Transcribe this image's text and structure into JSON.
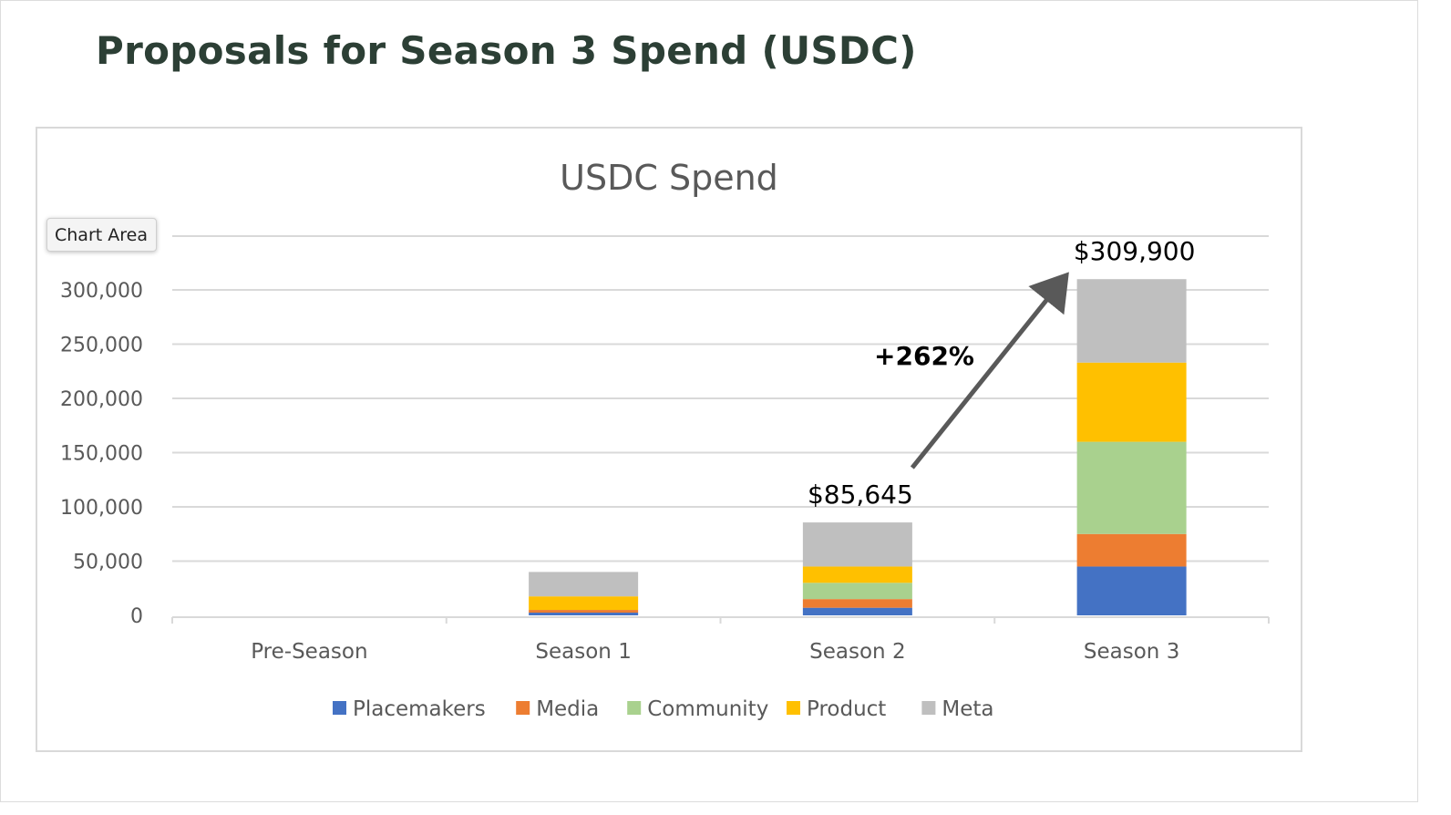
{
  "page": {
    "title": "Proposals for Season 3 Spend (USDC)",
    "tooltip": "Chart Area"
  },
  "chart_data": {
    "type": "bar",
    "stacked": true,
    "title": "USDC Spend",
    "xlabel": "",
    "ylabel": "",
    "categories": [
      "Pre-Season",
      "Season 1",
      "Season 2",
      "Season 3"
    ],
    "ylim": [
      0,
      350000
    ],
    "yticks": [
      0,
      50000,
      100000,
      150000,
      200000,
      250000,
      300000
    ],
    "ytick_labels": [
      "0",
      "50,000",
      "100,000",
      "150,000",
      "200,000",
      "250,000",
      "300,000"
    ],
    "grid": true,
    "legend_position": "bottom",
    "series": [
      {
        "name": "Placemakers",
        "color": "#4472c4",
        "values": [
          0,
          2500,
          7000,
          45000
        ]
      },
      {
        "name": "Media",
        "color": "#ed7d31",
        "values": [
          0,
          2500,
          8000,
          30000
        ]
      },
      {
        "name": "Community",
        "color": "#a9d18e",
        "values": [
          0,
          0,
          15000,
          85000
        ]
      },
      {
        "name": "Product",
        "color": "#ffc000",
        "values": [
          0,
          12500,
          15000,
          73000
        ]
      },
      {
        "name": "Meta",
        "color": "#bfbfbf",
        "values": [
          0,
          22500,
          40645,
          76900
        ]
      }
    ],
    "totals": [
      0,
      40000,
      85645,
      309900
    ],
    "data_labels": [
      {
        "category": "Season 2",
        "text": "$85,645"
      },
      {
        "category": "Season 3",
        "text": "$309,900"
      }
    ],
    "annotations": [
      {
        "text": "+262%",
        "from": "Season 2",
        "to": "Season 3"
      }
    ]
  }
}
